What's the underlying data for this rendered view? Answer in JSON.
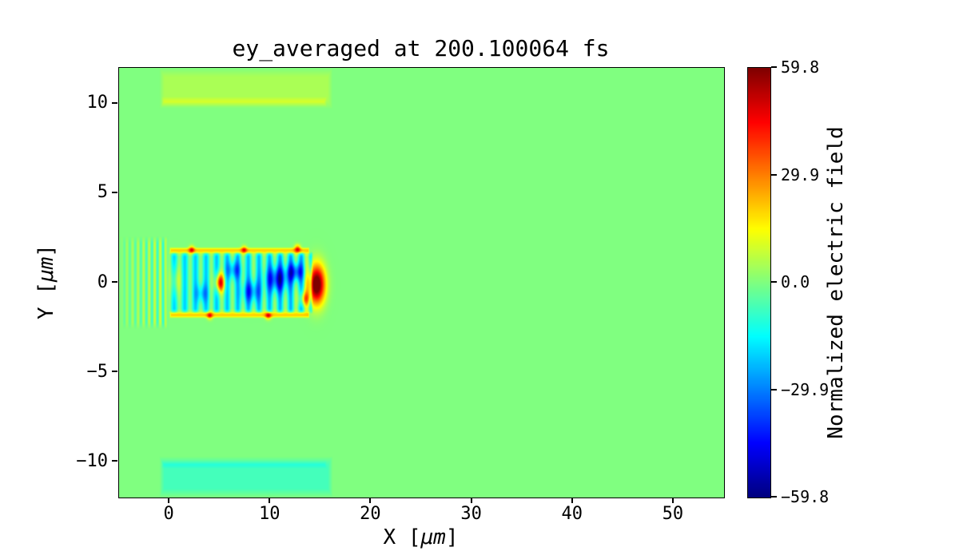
{
  "figure": {
    "background": "#ffffff",
    "text_color": "#000000"
  },
  "chart_data": {
    "type": "heatmap",
    "title": "ey_averaged at 200.100064 fs",
    "xlabel": {
      "prefix": "X [",
      "unit": "μm",
      "suffix": "]"
    },
    "ylabel": {
      "prefix": "Y [",
      "unit": "μm",
      "suffix": "]"
    },
    "xlim": [
      -5,
      55
    ],
    "ylim": [
      -12,
      12
    ],
    "grid": false,
    "x_ticks": [
      {
        "value": 0,
        "label": "0"
      },
      {
        "value": 10,
        "label": "10"
      },
      {
        "value": 20,
        "label": "20"
      },
      {
        "value": 30,
        "label": "30"
      },
      {
        "value": 40,
        "label": "40"
      },
      {
        "value": 50,
        "label": "50"
      }
    ],
    "y_ticks": [
      {
        "value": 10,
        "label": "10"
      },
      {
        "value": 5,
        "label": "5"
      },
      {
        "value": 0,
        "label": "0"
      },
      {
        "value": -5,
        "label": "−5"
      },
      {
        "value": -10,
        "label": "−10"
      }
    ],
    "colorbar": {
      "label": "Normalized electric field",
      "colormap": "jet",
      "vmin": -59.8,
      "vmax": 59.8,
      "ticks": [
        {
          "value": 59.8,
          "label": "59.8"
        },
        {
          "value": 29.9,
          "label": "29.9"
        },
        {
          "value": 0.0,
          "label": "0.0"
        },
        {
          "value": -29.9,
          "label": "−29.9"
        },
        {
          "value": -59.8,
          "label": "−59.8"
        }
      ]
    },
    "field": {
      "background_value": 0.0,
      "clip": 59.8,
      "description": "Laser wakefield ey map: green zero background; faint yellow-green band near y=+10 and cyan band near y=-10 for x in [-1,16]; entrance ripple stripes for x<0; plasma channel x in [0,16], |y|<2 with cyan/blue interior, yellow edge lines at y=±1.8, strong red pulse blob near x=14.6",
      "features": [
        {
          "kind": "band",
          "x0": -1.0,
          "x1": 16.2,
          "y0": 9.7,
          "y1": 12.0,
          "value": 5,
          "soft": 0.5
        },
        {
          "kind": "band",
          "x0": -0.8,
          "x1": 15.6,
          "y0": 9.8,
          "y1": 10.4,
          "value": 6,
          "soft": 0.3
        },
        {
          "kind": "band",
          "x0": -1.0,
          "x1": 16.2,
          "y0": -12.0,
          "y1": -9.7,
          "value": -7,
          "soft": 0.5
        },
        {
          "kind": "band",
          "x0": -0.8,
          "x1": 15.6,
          "y0": -10.4,
          "y1": -9.9,
          "value": -5,
          "soft": 0.3
        },
        {
          "kind": "stripes",
          "x0": -4.9,
          "x1": -0.1,
          "y0": -2.6,
          "y1": 2.6,
          "amp0": 3,
          "amp1": 11,
          "period": 0.55,
          "phase": 0,
          "soft": 0.4
        },
        {
          "kind": "band",
          "x0": -0.1,
          "x1": 14.3,
          "y0": -1.7,
          "y1": 1.7,
          "value": -10,
          "soft": 0.25
        },
        {
          "kind": "stripes",
          "x0": -0.1,
          "x1": 14.2,
          "y0": -1.75,
          "y1": 1.75,
          "amp0": 10,
          "amp1": 15,
          "period": 1.05,
          "phase": 1.3,
          "soft": 0.2
        },
        {
          "kind": "band",
          "x0": 0.0,
          "x1": 13.9,
          "y0": 1.6,
          "y1": 2.0,
          "value": 20,
          "soft": 0.15
        },
        {
          "kind": "band",
          "x0": 0.0,
          "x1": 13.9,
          "y0": -2.0,
          "y1": -1.6,
          "value": 20,
          "soft": 0.15
        },
        {
          "kind": "blob",
          "cx": 14.6,
          "cy": -0.1,
          "rx": 0.8,
          "ry": 1.05,
          "value": 70
        },
        {
          "kind": "blob",
          "cx": 5.0,
          "cy": 0.0,
          "rx": 0.45,
          "ry": 0.5,
          "value": 52
        },
        {
          "kind": "blob",
          "cx": 10.7,
          "cy": 0.2,
          "rx": 1.1,
          "ry": 0.7,
          "value": -38
        },
        {
          "kind": "blob",
          "cx": 12.5,
          "cy": 0.6,
          "rx": 0.8,
          "ry": 0.5,
          "value": -34
        },
        {
          "kind": "blob",
          "cx": 8.1,
          "cy": -0.5,
          "rx": 0.9,
          "ry": 0.6,
          "value": -26
        },
        {
          "kind": "blob",
          "cx": 6.4,
          "cy": 0.7,
          "rx": 0.7,
          "ry": 0.5,
          "value": -24
        },
        {
          "kind": "blob",
          "cx": 3.2,
          "cy": -0.6,
          "rx": 0.6,
          "ry": 0.5,
          "value": -18
        },
        {
          "kind": "blob",
          "cx": 13.4,
          "cy": -0.9,
          "rx": 0.5,
          "ry": 0.4,
          "value": 30
        },
        {
          "kind": "blob",
          "cx": 0.6,
          "cy": 0.1,
          "rx": 0.5,
          "ry": 0.8,
          "value": 14
        },
        {
          "kind": "blob",
          "cx": 2.2,
          "cy": 1.85,
          "rx": 0.28,
          "ry": 0.2,
          "value": 30
        },
        {
          "kind": "blob",
          "cx": 7.4,
          "cy": 1.85,
          "rx": 0.28,
          "ry": 0.2,
          "value": 28
        },
        {
          "kind": "blob",
          "cx": 12.7,
          "cy": 1.9,
          "rx": 0.3,
          "ry": 0.22,
          "value": 32
        },
        {
          "kind": "blob",
          "cx": 4.0,
          "cy": -1.85,
          "rx": 0.28,
          "ry": 0.2,
          "value": 28
        },
        {
          "kind": "blob",
          "cx": 9.8,
          "cy": -1.85,
          "rx": 0.3,
          "ry": 0.2,
          "value": 30
        }
      ]
    }
  }
}
